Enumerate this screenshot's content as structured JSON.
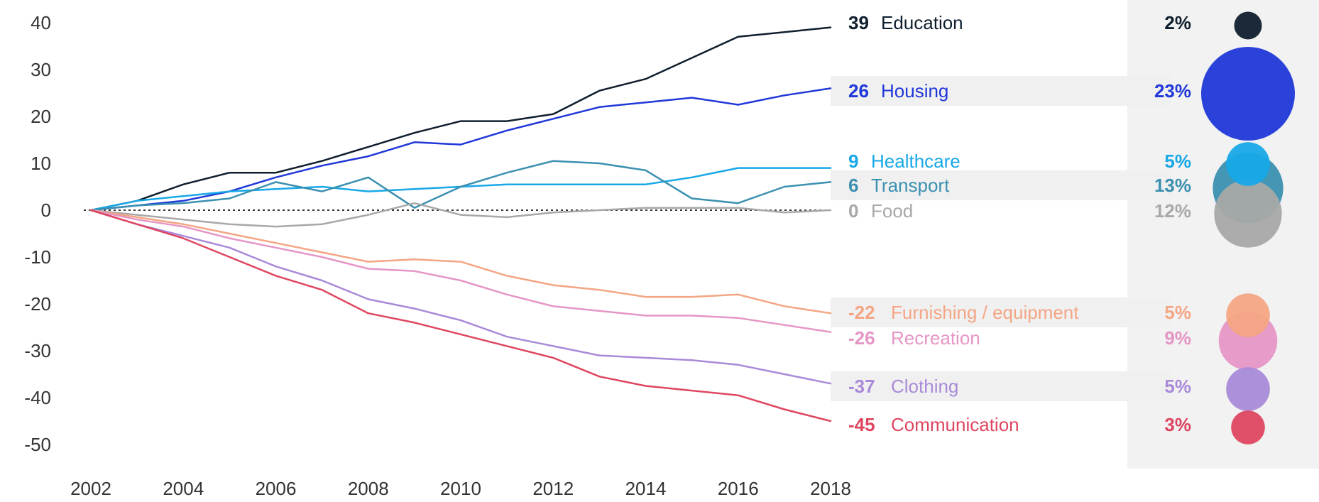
{
  "chart_data": {
    "type": "line",
    "title": "",
    "xlabel": "",
    "ylabel": "",
    "x": [
      2002,
      2003,
      2004,
      2005,
      2006,
      2007,
      2008,
      2009,
      2010,
      2011,
      2012,
      2013,
      2014,
      2015,
      2016,
      2017,
      2018
    ],
    "x_ticks": [
      "2002",
      "2004",
      "2006",
      "2008",
      "2010",
      "2012",
      "2014",
      "2016",
      "2018"
    ],
    "y_ticks": [
      "40",
      "30",
      "20",
      "10",
      "0",
      "-10",
      "-20",
      "-30",
      "-40",
      "-50"
    ],
    "xlim": [
      2002,
      2018
    ],
    "ylim": [
      -50,
      40
    ],
    "grid": false,
    "zero_line": "dotted",
    "series": [
      {
        "name": "Education",
        "final": "39",
        "share": "2%",
        "share_value": 2,
        "color": "#0f1e2d",
        "values": [
          0,
          2,
          5.5,
          8,
          8,
          10.5,
          13.5,
          16.5,
          19,
          19,
          20.5,
          25.5,
          28,
          32.5,
          37,
          38,
          39
        ]
      },
      {
        "name": "Housing",
        "final": "26",
        "share": "23%",
        "share_value": 23,
        "color": "#2038d8",
        "values": [
          0,
          1,
          2,
          4,
          7,
          9.5,
          11.5,
          14.5,
          14,
          17,
          19.5,
          22,
          23,
          24,
          22.5,
          24.5,
          26
        ]
      },
      {
        "name": "Healthcare",
        "final": "9",
        "share": "5%",
        "share_value": 5,
        "color": "#18a8e8",
        "values": [
          0,
          2,
          3,
          4,
          4.5,
          5,
          4,
          4.5,
          5,
          5.5,
          5.5,
          5.5,
          5.5,
          7,
          9,
          9,
          9
        ]
      },
      {
        "name": "Transport",
        "final": "6",
        "share": "13%",
        "share_value": 13,
        "color": "#3b90b0",
        "values": [
          0,
          1,
          1.5,
          2.5,
          6,
          4,
          7,
          0.5,
          5,
          8,
          10.5,
          10,
          8.5,
          2.5,
          1.5,
          5,
          6
        ]
      },
      {
        "name": "Food",
        "final": "0",
        "share": "12%",
        "share_value": 12,
        "color": "#a8a8a8",
        "values": [
          0,
          -1,
          -2,
          -3,
          -3.5,
          -3,
          -1,
          1.5,
          -1,
          -1.5,
          -0.5,
          0,
          0.5,
          0.5,
          0.5,
          -0.5,
          0
        ]
      },
      {
        "name": "Furnishing / equipment",
        "final": "-22",
        "share": "5%",
        "share_value": 5,
        "color": "#f4a584",
        "values": [
          0,
          -1.5,
          -3,
          -5,
          -7,
          -9,
          -11,
          -10.5,
          -11,
          -14,
          -16,
          -17,
          -18.5,
          -18.5,
          -18,
          -20.5,
          -22
        ]
      },
      {
        "name": "Recreation",
        "final": "-26",
        "share": "9%",
        "share_value": 9,
        "color": "#e596c5",
        "values": [
          0,
          -2,
          -3.5,
          -6,
          -8,
          -10,
          -12.5,
          -13,
          -15,
          -18,
          -20.5,
          -21.5,
          -22.5,
          -22.5,
          -23,
          -24.5,
          -26
        ]
      },
      {
        "name": "Clothing",
        "final": "-37",
        "share": "5%",
        "share_value": 5,
        "color": "#a98ad8",
        "values": [
          0,
          -3,
          -5.5,
          -8,
          -12,
          -15,
          -19,
          -21,
          -23.5,
          -27,
          -29,
          -31,
          -31.5,
          -32,
          -33,
          -35,
          -37
        ]
      },
      {
        "name": "Communication",
        "final": "-45",
        "share": "3%",
        "share_value": 3,
        "color": "#de4660",
        "values": [
          0,
          -3,
          -6,
          -10,
          -14,
          -17,
          -22,
          -24,
          -26.5,
          -29,
          -31.5,
          -35.5,
          -37.5,
          -38.5,
          -39.5,
          -42.5,
          -45
        ]
      }
    ]
  }
}
